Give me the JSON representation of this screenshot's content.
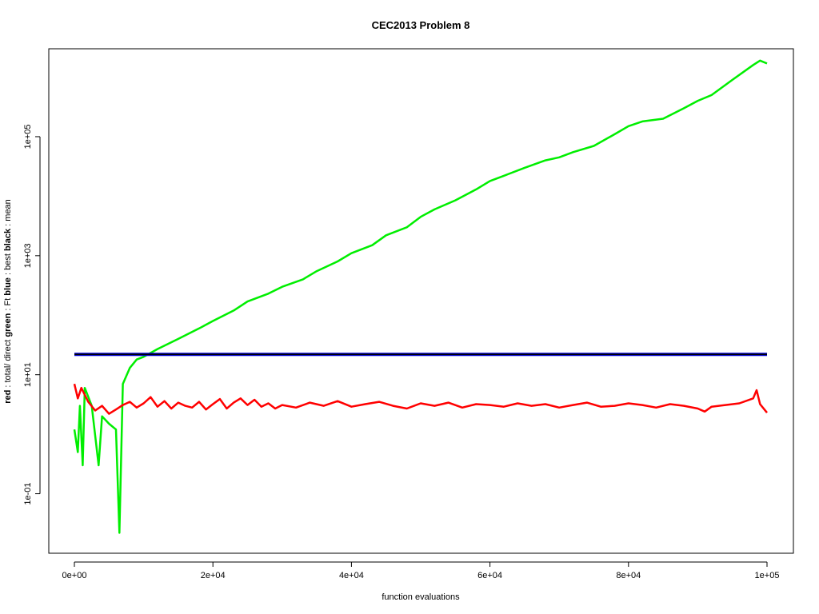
{
  "chart_data": {
    "type": "line",
    "title": "CEC2013 Problem  8",
    "xlabel": "function evaluations",
    "ylabel_parts": [
      {
        "text": "red",
        "bold": true
      },
      {
        "text": " : total/ direct ",
        "bold": false
      },
      {
        "text": "green",
        "bold": true
      },
      {
        "text": " : Ft ",
        "bold": false
      },
      {
        "text": "blue",
        "bold": true
      },
      {
        "text": " : best ",
        "bold": false
      },
      {
        "text": "black",
        "bold": true
      },
      {
        "text": " : mean",
        "bold": false
      }
    ],
    "x_scale": "linear",
    "y_scale": "log10",
    "xlim": [
      0,
      100000
    ],
    "ylim": [
      0.01,
      3000000
    ],
    "x_ticks": [
      {
        "value": 0,
        "label": "0e+00"
      },
      {
        "value": 20000,
        "label": "2e+04"
      },
      {
        "value": 40000,
        "label": "4e+04"
      },
      {
        "value": 60000,
        "label": "6e+04"
      },
      {
        "value": 80000,
        "label": "8e+04"
      },
      {
        "value": 100000,
        "label": "1e+05"
      }
    ],
    "y_ticks": [
      {
        "value": 0.1,
        "label": "1e-01"
      },
      {
        "value": 10,
        "label": "1e+01"
      },
      {
        "value": 1000,
        "label": "1e+03"
      },
      {
        "value": 100000,
        "label": "1e+05"
      }
    ],
    "grid": false,
    "legend": "none",
    "series": [
      {
        "color": "#00ee00",
        "x": [
          0,
          500,
          800,
          1200,
          1500,
          2500,
          3500,
          4000,
          5000,
          6000,
          6500,
          7000,
          8000,
          9000,
          10000,
          12000,
          15000,
          18000,
          20000,
          23000,
          25000,
          28000,
          30000,
          33000,
          35000,
          38000,
          40000,
          43000,
          45000,
          48000,
          50000,
          52000,
          55000,
          58000,
          60000,
          62000,
          65000,
          68000,
          70000,
          72000,
          75000,
          78000,
          80000,
          82000,
          85000,
          88000,
          90000,
          92000,
          95000,
          98000,
          99000,
          100000
        ],
        "y": [
          1.2,
          0.5,
          3,
          0.3,
          6,
          3,
          0.3,
          2,
          1.5,
          1.2,
          0.022,
          7,
          13,
          18,
          20,
          27,
          40,
          60,
          80,
          120,
          170,
          230,
          300,
          400,
          550,
          800,
          1100,
          1500,
          2200,
          3000,
          4500,
          6000,
          8500,
          13000,
          18000,
          22000,
          30000,
          40000,
          45000,
          55000,
          70000,
          110000,
          150000,
          180000,
          200000,
          300000,
          400000,
          500000,
          900000,
          1600000,
          1900000,
          1700000
        ]
      },
      {
        "color": "#0000cd",
        "x": [
          0,
          100000
        ],
        "y": [
          22,
          22
        ]
      },
      {
        "color": "#000000",
        "x": [
          0,
          100000
        ],
        "y": [
          22,
          22
        ]
      },
      {
        "color": "#ff0000",
        "x": [
          0,
          500,
          1000,
          2000,
          3000,
          4000,
          5000,
          6000,
          7000,
          8000,
          9000,
          10000,
          11000,
          12000,
          13000,
          14000,
          15000,
          16000,
          17000,
          18000,
          19000,
          20000,
          21000,
          22000,
          23000,
          24000,
          25000,
          26000,
          27000,
          28000,
          29000,
          30000,
          32000,
          34000,
          36000,
          38000,
          40000,
          42000,
          44000,
          46000,
          48000,
          50000,
          52000,
          54000,
          56000,
          58000,
          60000,
          62000,
          64000,
          66000,
          68000,
          70000,
          72000,
          74000,
          76000,
          78000,
          80000,
          82000,
          84000,
          86000,
          88000,
          90000,
          91000,
          92000,
          94000,
          96000,
          98000,
          98500,
          99000,
          100000
        ],
        "y": [
          7,
          4,
          6,
          3.5,
          2.5,
          3,
          2.2,
          2.6,
          3.1,
          3.5,
          2.8,
          3.3,
          4.2,
          2.9,
          3.6,
          2.7,
          3.4,
          3,
          2.8,
          3.5,
          2.6,
          3.2,
          3.9,
          2.7,
          3.4,
          4,
          3.1,
          3.8,
          2.9,
          3.3,
          2.7,
          3.1,
          2.8,
          3.4,
          3.0,
          3.6,
          2.9,
          3.2,
          3.5,
          3.0,
          2.7,
          3.3,
          3.0,
          3.4,
          2.8,
          3.2,
          3.1,
          2.9,
          3.3,
          3.0,
          3.2,
          2.8,
          3.1,
          3.4,
          2.9,
          3.0,
          3.3,
          3.1,
          2.8,
          3.2,
          3.0,
          2.7,
          2.4,
          2.9,
          3.1,
          3.3,
          4.0,
          5.5,
          3.2,
          2.3
        ]
      }
    ]
  }
}
